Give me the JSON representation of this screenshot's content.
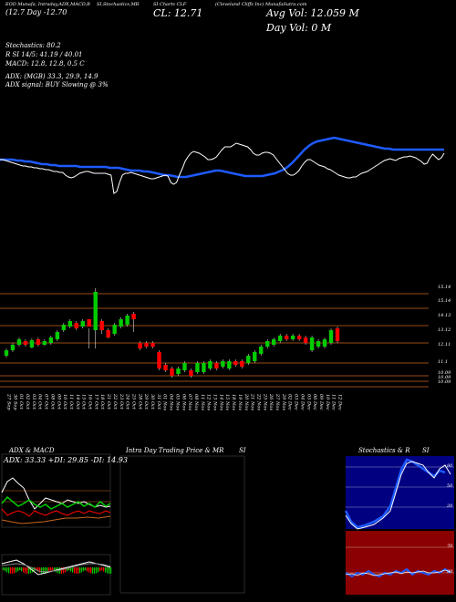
{
  "header": {
    "line1": "EOD Munafa, Intraday,ADX,MACD,R",
    "line1b": "SI,Stochastics,MR",
    "line1c": "SI Charts CLF",
    "line1d": "(Cleveland Cliffs Inc) MunafaSutra.com",
    "line2": "(12.7 Day -12.70",
    "cl": "CL: 12.71",
    "avgvol": "Avg Vol: 12.059 M",
    "dayvol": "Day Vol: 0  M",
    "stoch": "Stochastics: 80.2",
    "rsi": "R                    SI 14/5: 41.19 / 40.01",
    "macd": "MACD: 12.8, 12.8, 0.5 C",
    "adx": "ADX:                             (MGB) 33.3,  29.9,  14.9",
    "adxsignal": "ADX  signal:                                    BUY Slowing @ 3%"
  },
  "panels": {
    "adx_macd": "ADX  & MACD",
    "adx_values": "ADX: 33.33 +DI: 29.85 -DI: 14.93",
    "intraday": "Intra  Day Trading Price  & MR",
    "intraday_si": "SI",
    "stoch_r": "Stochastics & R",
    "stoch_si": "SI"
  },
  "colors": {
    "up": "#00cc00",
    "down": "#ff0000",
    "ema": "#1e5bff",
    "price": "#ffffff",
    "grid": "#c8641e",
    "stoch_bg": "#000080",
    "rsi_bg": "#8b0000"
  },
  "chart_data": [
    {
      "type": "line",
      "title": "Price vs moving average",
      "series": [
        {
          "values": [
            55,
            55,
            55,
            55,
            54,
            54,
            53,
            53,
            52,
            51,
            50,
            50,
            49,
            49,
            48,
            48,
            48,
            48,
            48,
            47,
            47,
            47,
            47,
            47,
            47,
            47,
            46,
            46,
            46,
            45,
            44,
            43,
            43,
            43,
            42,
            42,
            41,
            40,
            39,
            38,
            38,
            37,
            36,
            36,
            36,
            37,
            38,
            39,
            40,
            41,
            42,
            43,
            43,
            42,
            41,
            40,
            39,
            38,
            37,
            37,
            37,
            37,
            37,
            38,
            39,
            40,
            42,
            44,
            47,
            51,
            56,
            61,
            66,
            70,
            73,
            75,
            76,
            77,
            78,
            79,
            78,
            77,
            76,
            75,
            74,
            73,
            72,
            71,
            70,
            69,
            68,
            67,
            67,
            66,
            66,
            66,
            66,
            66,
            66,
            66,
            66,
            66,
            66,
            66,
            66,
            66
          ]
        },
        {
          "values": [
            55,
            55,
            54,
            53,
            52,
            51,
            50,
            49,
            48,
            48,
            47,
            47,
            46,
            46,
            45,
            45,
            44,
            44,
            43,
            42,
            42,
            41,
            41,
            38,
            36,
            35,
            36,
            38,
            40,
            41,
            42,
            42,
            41,
            40,
            40,
            40,
            40,
            40,
            39,
            38,
            18,
            20,
            30,
            38,
            40,
            40,
            41,
            40,
            39,
            38,
            37,
            36,
            35,
            34,
            34,
            35,
            36,
            37,
            38,
            37,
            30,
            28,
            30,
            38,
            45,
            53,
            58,
            62,
            64,
            63,
            62,
            60,
            58,
            55,
            55,
            56,
            58,
            62,
            66,
            69,
            69,
            69,
            71,
            73,
            72,
            71,
            70,
            69,
            66,
            62,
            60,
            60,
            62,
            63,
            63,
            62,
            60,
            56,
            52,
            48,
            44,
            40,
            38,
            38,
            40,
            43,
            48,
            52,
            55,
            55,
            53,
            51,
            49,
            48,
            47,
            45,
            44,
            42,
            40,
            38,
            37,
            36,
            35,
            35,
            36,
            36,
            38,
            40,
            41,
            42,
            44,
            46,
            48,
            50,
            52,
            54,
            55,
            56,
            55,
            54,
            56,
            57,
            58,
            58,
            59,
            58,
            57,
            55,
            53,
            50,
            51,
            57,
            61,
            58,
            55,
            57,
            62
          ]
        }
      ]
    },
    {
      "type": "candlestick",
      "x": [
        "27 Sep",
        "30 Sep",
        "01 Oct",
        "02 Oct",
        "03 Oct",
        "04 Oct",
        "07 Oct",
        "08 Oct",
        "09 Oct",
        "10 Oct",
        "11 Oct",
        "14 Oct",
        "15 Oct",
        "16 Oct",
        "17 Oct",
        "18 Oct",
        "21 Oct",
        "22 Oct",
        "23 Oct",
        "24 Oct",
        "25 Oct",
        "28 Oct",
        "29 Oct",
        "30 Oct",
        "31 Oct",
        "01 Nov",
        "04 Nov",
        "05 Nov",
        "06 Nov",
        "07 Nov",
        "08 Nov",
        "11 Nov",
        "12 Nov",
        "13 Nov",
        "14 Nov",
        "15 Nov",
        "18 Nov",
        "19 Nov",
        "20 Nov",
        "21 Nov",
        "22 Nov",
        "25 Nov",
        "26 Nov",
        "27 Nov",
        "29 Nov",
        "02 Dec",
        "03 Dec",
        "04 Dec",
        "05 Dec",
        "06 Dec",
        "09 Dec",
        "10 Dec",
        "11 Dec",
        "12 Dec"
      ],
      "y_ticks": [
        "15.14",
        "14.13",
        "13.12",
        "12.11",
        "11.1",
        "10.09",
        "10.09",
        "10.09"
      ],
      "price_label": "15.14"
    }
  ]
}
